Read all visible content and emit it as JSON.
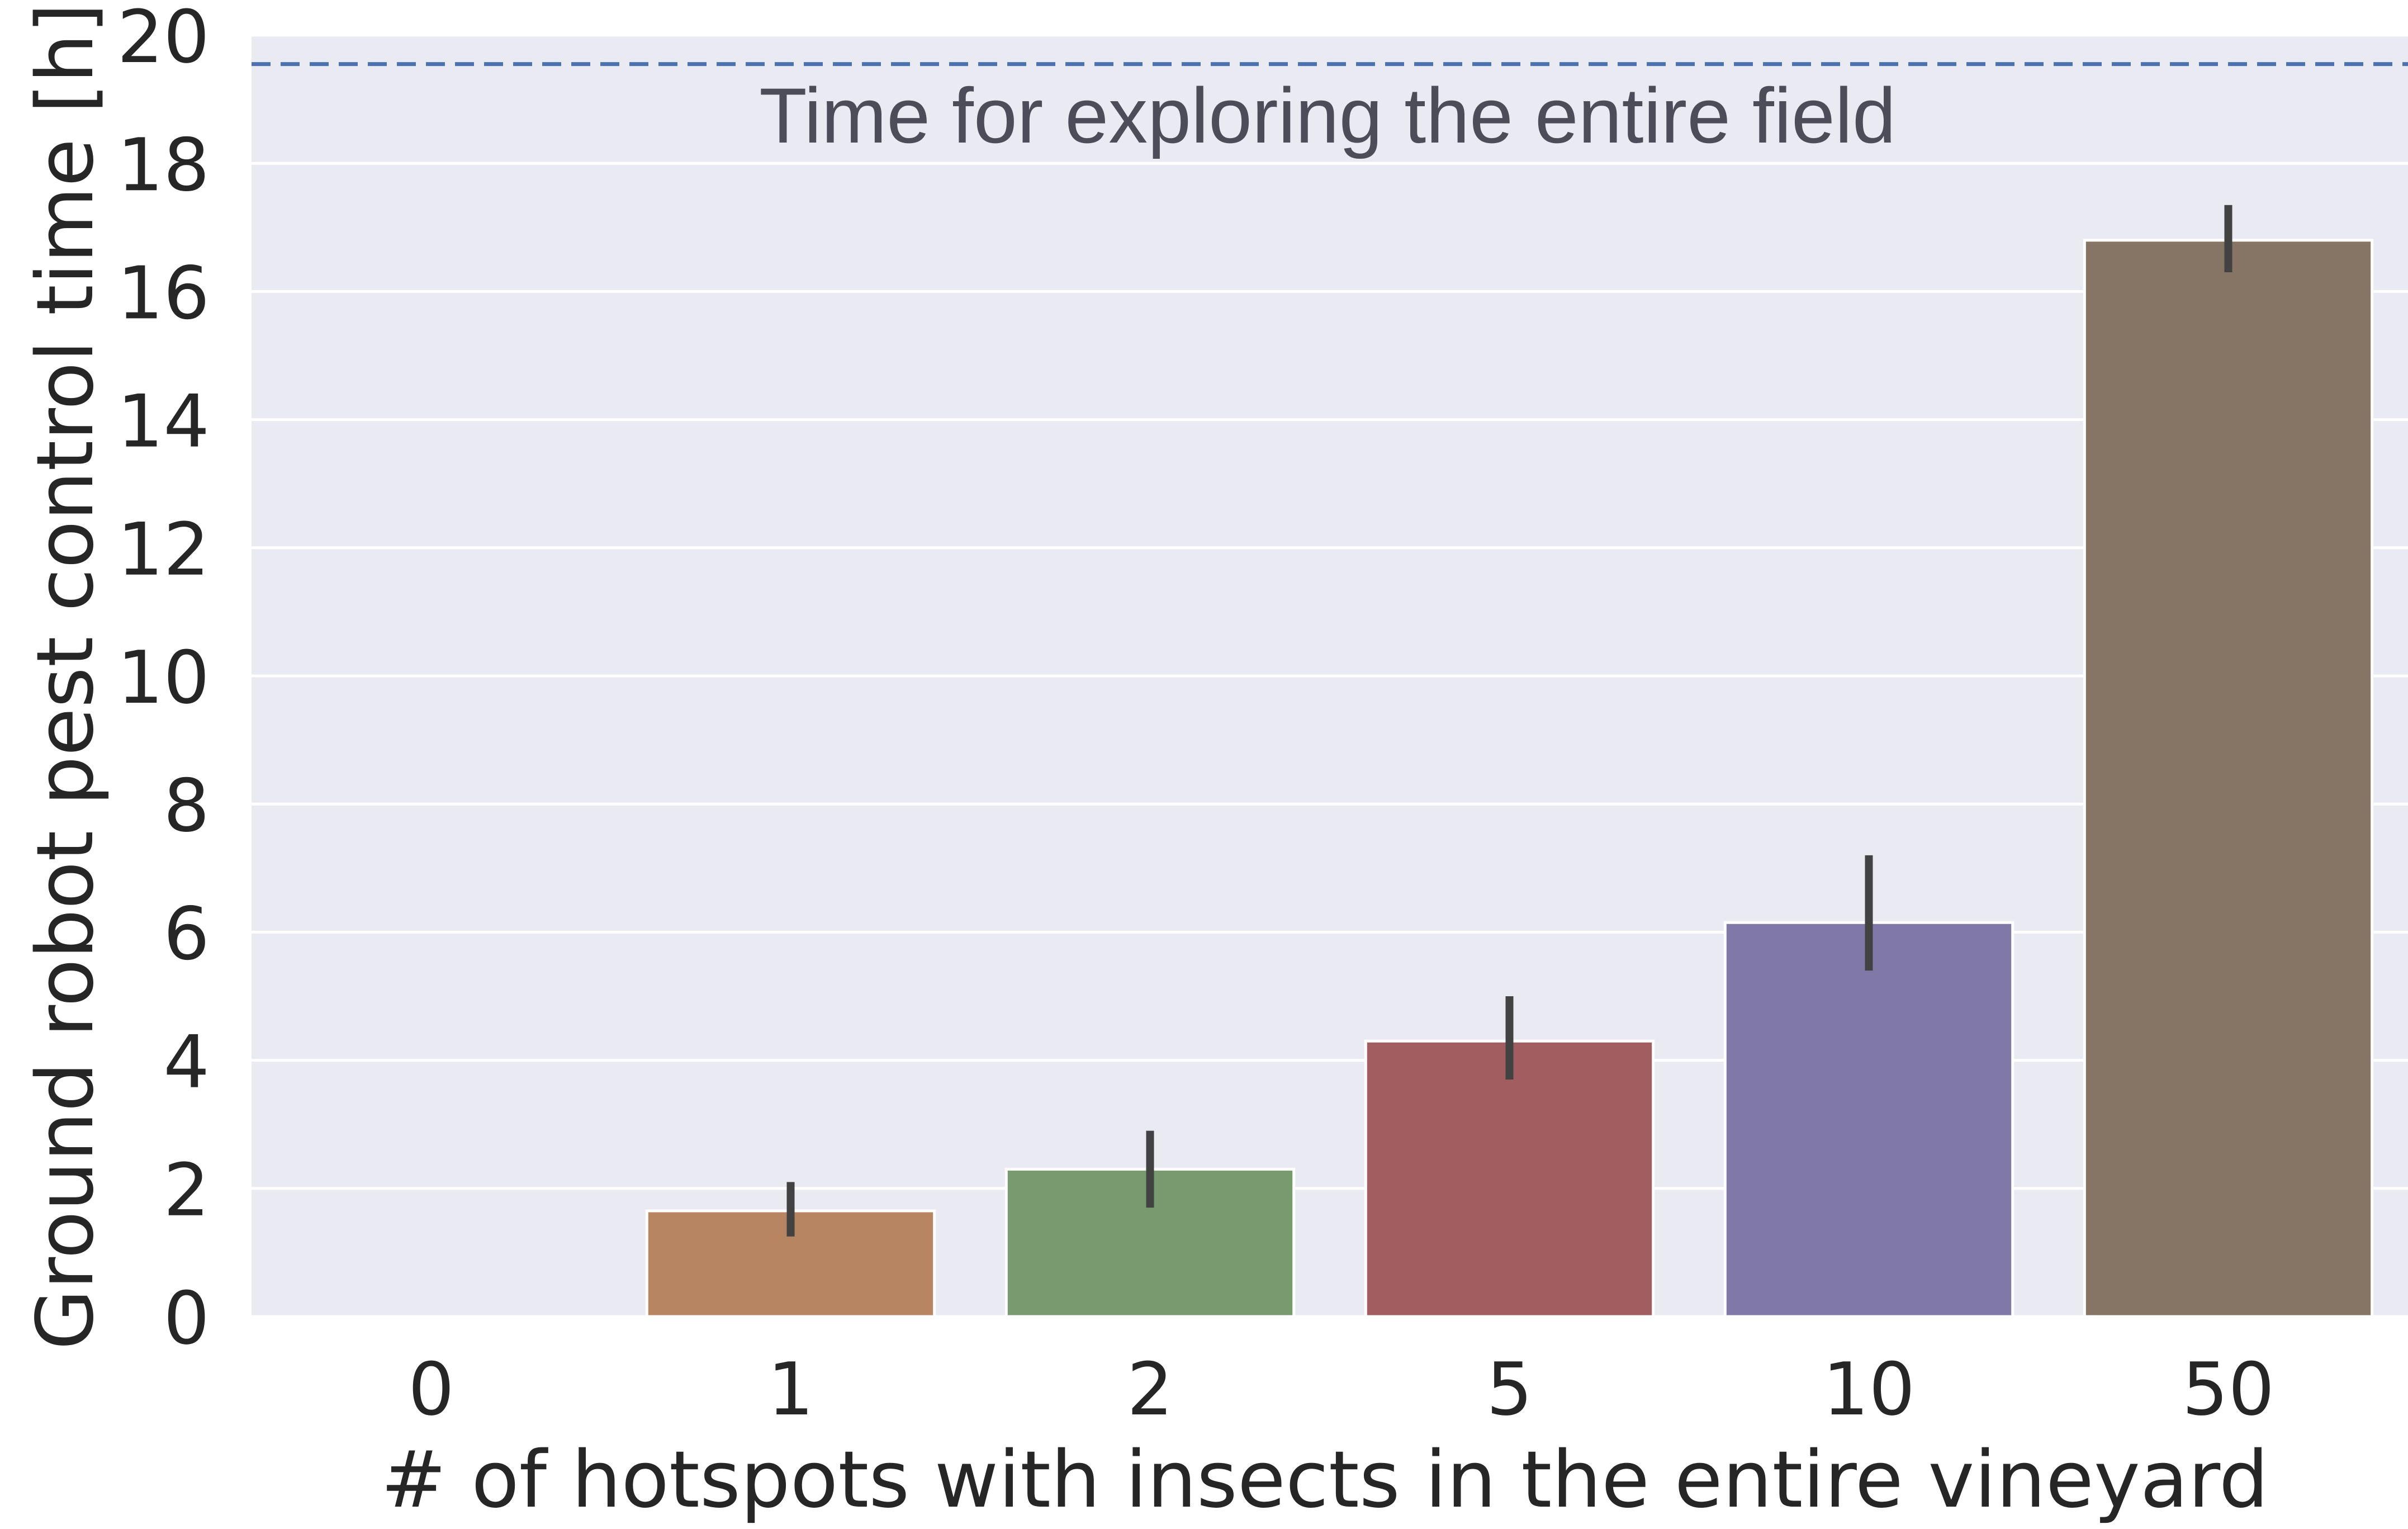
{
  "chart_data": {
    "type": "bar",
    "title": "",
    "xlabel": "# of hotspots with insects in the entire vineyard",
    "ylabel": "Ground robot pest control time [h]",
    "categories": [
      "0",
      "1",
      "2",
      "5",
      "10",
      "50"
    ],
    "values": [
      0,
      1.65,
      2.3,
      4.3,
      6.15,
      16.8
    ],
    "error_low": [
      0,
      1.25,
      1.7,
      3.7,
      5.4,
      16.3
    ],
    "error_high": [
      0,
      2.1,
      2.9,
      5.0,
      7.2,
      17.35
    ],
    "colors": [
      "#4c72b0",
      "#b88562",
      "#779b6f",
      "#a15d5f",
      "#8079a8",
      "#867564"
    ],
    "ylim": [
      0,
      20
    ],
    "yticks": [
      "0",
      "2",
      "4",
      "6",
      "8",
      "10",
      "12",
      "14",
      "16",
      "18",
      "20"
    ],
    "grid": true,
    "reference_line": {
      "value": 19.55,
      "label": "Time for exploring the entire field",
      "color": "#4c72b0",
      "style": "dashed"
    }
  }
}
